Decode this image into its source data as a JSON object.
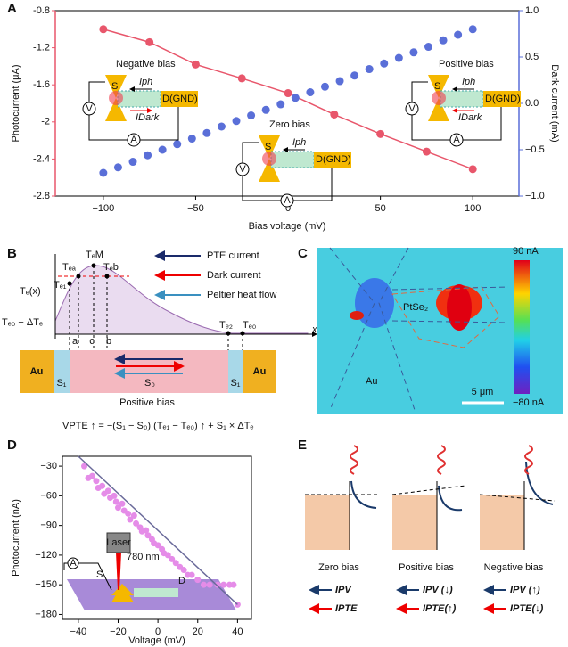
{
  "chart_data": [
    {
      "type": "scatter",
      "label": "A",
      "xlabel": "Bias voltage (mV)",
      "ylabel": "Photocurrent (μA)",
      "y2label": "Dark current (mA)",
      "xlim": [
        -126,
        125
      ],
      "xticks": [
        {
          "value": -100,
          "label": "−100"
        },
        {
          "value": -50,
          "label": "−50"
        },
        0,
        50,
        100
      ],
      "ylim": [
        -2.8,
        -0.8
      ],
      "yticks": [
        -2.8,
        -2.4,
        -2.0,
        -1.6,
        -1.2,
        -0.8
      ],
      "y2lim": [
        -1.0,
        1.0
      ],
      "y2ticks": [
        {
          "value": -1.0,
          "label": "−1.0"
        },
        {
          "value": -0.5,
          "label": "−0.5"
        },
        {
          "value": 0,
          "label": "0.0"
        },
        0.5,
        {
          "value": 1.0,
          "label": "1.0"
        }
      ],
      "series": [
        {
          "color": "#e8566b",
          "connected": true,
          "x": [
            -100,
            -75,
            -50,
            -25,
            0,
            25,
            50,
            75,
            100
          ],
          "values": [
            -1.0,
            -1.14,
            -1.38,
            -1.53,
            -1.69,
            -1.92,
            -2.13,
            -2.32,
            -2.51
          ]
        },
        {
          "color": "#5a6fd8",
          "connected": false,
          "axis": "y2",
          "x": [
            -100,
            -92,
            -84,
            -76,
            -68,
            -60,
            -52,
            -44,
            -36,
            -28,
            -20,
            -12,
            -4,
            4,
            12,
            20,
            28,
            36,
            44,
            52,
            60,
            68,
            76,
            84,
            92,
            100
          ],
          "values": [
            -0.75,
            -0.69,
            -0.63,
            -0.56,
            -0.5,
            -0.44,
            -0.38,
            -0.32,
            -0.25,
            -0.19,
            -0.13,
            -0.07,
            -0.01,
            0.06,
            0.12,
            0.18,
            0.24,
            0.3,
            0.37,
            0.43,
            0.49,
            0.55,
            0.61,
            0.68,
            0.74,
            0.8
          ]
        }
      ],
      "insets": [
        "Negative bias",
        "Zero bias",
        "Positive bias"
      ],
      "inset_texts": {
        "source": "S",
        "iph": "Iph",
        "idark": "IDark",
        "drain": "D(GND)",
        "volt": "V",
        "amp": "A"
      }
    },
    {
      "type": "scatter",
      "label": "D",
      "xlabel": "Voltage (mV)",
      "ylabel": "Photocurrent (nA)",
      "xlim": [
        -48,
        47
      ],
      "xticks": [
        {
          "value": -40,
          "label": "−40"
        },
        {
          "value": -20,
          "label": "−20"
        },
        0,
        20,
        40
      ],
      "ylim": [
        -185,
        -20
      ],
      "yticks": [
        {
          "value": -180,
          "label": "−180"
        },
        {
          "value": -150,
          "label": "−150"
        },
        {
          "value": -120,
          "label": "−120"
        },
        {
          "value": -90,
          "label": "−90"
        },
        {
          "value": -60,
          "label": "−60"
        },
        {
          "value": -30,
          "label": "−30"
        }
      ],
      "series": [
        {
          "color": "#e58ce8",
          "x": [
            -37,
            -35,
            -33,
            -31,
            -30,
            -28,
            -27,
            -25,
            -24,
            -22,
            -21,
            -20,
            -18,
            -17,
            -15,
            -14,
            -12,
            -11,
            -9,
            -8,
            -6,
            -5,
            -3,
            -2,
            0,
            2,
            3,
            5,
            7,
            9,
            11,
            13,
            15,
            17,
            20,
            23,
            26,
            30,
            33,
            36,
            38,
            40
          ],
          "values": [
            -30,
            -42,
            -40,
            -45,
            -52,
            -50,
            -58,
            -55,
            -62,
            -60,
            -66,
            -72,
            -68,
            -75,
            -78,
            -84,
            -80,
            -88,
            -92,
            -96,
            -95,
            -100,
            -104,
            -108,
            -110,
            -114,
            -118,
            -120,
            -124,
            -128,
            -132,
            -135,
            -140,
            -140,
            -145,
            -150,
            -150,
            -150,
            -150,
            -150,
            -150,
            -170
          ]
        },
        {
          "type": "line",
          "color": "#6a6a9a",
          "x": [
            -40,
            40
          ],
          "values": [
            -20,
            -170
          ]
        }
      ],
      "inset": {
        "laser": "Laser",
        "wavelength": "780 nm",
        "amp": "A",
        "source": "S",
        "drain": "D"
      }
    }
  ],
  "panel_b": {
    "label": "B",
    "legend": [
      "PTE current",
      "Dark current",
      "Peltier heat flow"
    ],
    "temps": {
      "te": "Tₑ(x)",
      "te0d": "Tₑ₀ + ΔTₑ",
      "te1": "Tₑ₁",
      "tea": "Tₑₐ",
      "tem": "TₑM",
      "teb": "Tₑb",
      "te2": "Tₑ₂",
      "te0": "Tₑ₀"
    },
    "axis": "x",
    "points": [
      "a",
      "c",
      "b"
    ],
    "au": "Au",
    "s1": "S₁",
    "s0": "S₀",
    "bias": "Positive bias",
    "formula": "VPTE ↑ = −(S₁ − S₀) (Tₑ₁ − Tₑ₀) ↑ + S₁ × ΔTₑ"
  },
  "panel_c": {
    "label": "C",
    "max": "90 nA",
    "min": "−80 nA",
    "material": "PtSe₂",
    "au": "Au",
    "scale": "5 μm"
  },
  "panel_e": {
    "label": "E",
    "cases": [
      "Zero bias",
      "Positive bias",
      "Negative bias"
    ],
    "currents": [
      [
        "IPV",
        "IPTE"
      ],
      [
        "IPV (↓)",
        "IPTE(↑)"
      ],
      [
        "IPV (↑)",
        "IPTE(↓)"
      ]
    ]
  }
}
